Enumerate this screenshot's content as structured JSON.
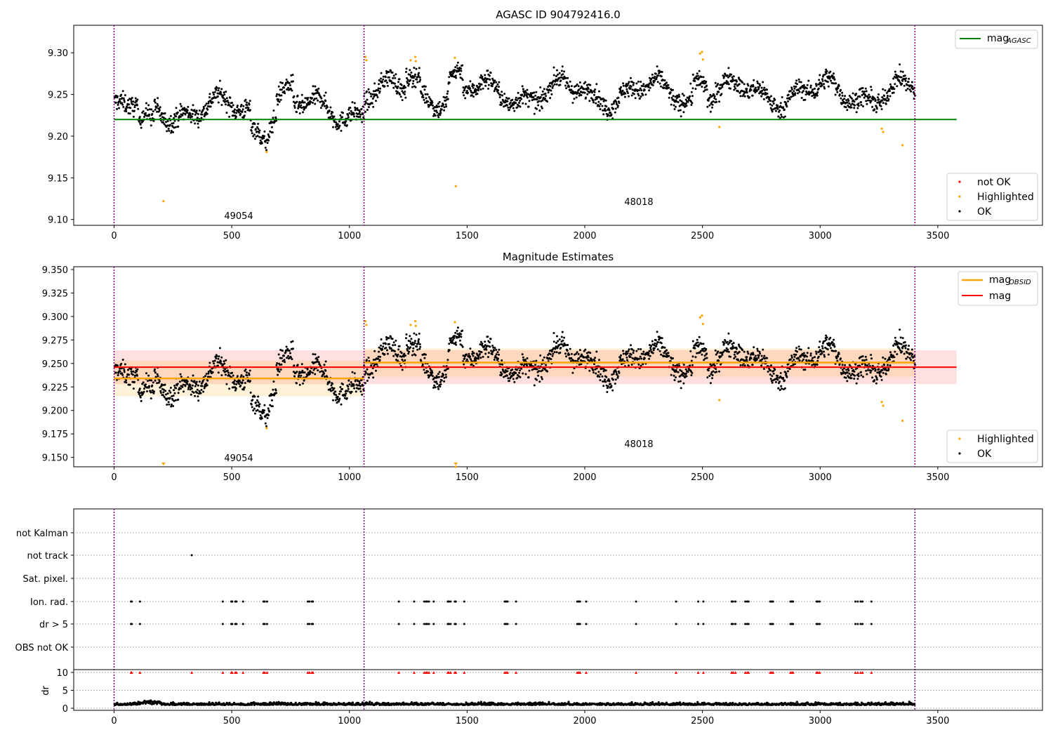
{
  "colors": {
    "ok": "#000000",
    "not_ok": "#ff0000",
    "highlighted": "#ffa500",
    "mag_agasc": "#008000",
    "mag_obsid": "#ffa500",
    "mag": "#ff0000",
    "obsid_boundary": "#800080"
  },
  "chart_data": [
    {
      "id": "top",
      "type": "scatter",
      "title": "AGASC ID 904792416.0",
      "xlim": [
        -170,
        3970
      ],
      "ylim": [
        9.093,
        9.333
      ],
      "xticks": [
        0,
        500,
        1000,
        1500,
        2000,
        2500,
        3000,
        3500
      ],
      "yticks": [
        "9.10",
        "9.15",
        "9.20",
        "9.25",
        "9.30"
      ],
      "obsid_boundaries": [
        0,
        1062,
        3403
      ],
      "obsid_labels": [
        {
          "text": "49054",
          "x": 530,
          "y": 9.104
        },
        {
          "text": "48018",
          "x": 2230,
          "y": 9.121
        }
      ],
      "mag_agasc": {
        "y": 9.22,
        "x": [
          0,
          3580
        ]
      },
      "highlighted_points": [
        {
          "x": 210,
          "y": 9.122
        },
        {
          "x": 648,
          "y": 9.181
        },
        {
          "x": 1068,
          "y": 9.295
        },
        {
          "x": 1072,
          "y": 9.291
        },
        {
          "x": 1260,
          "y": 9.291
        },
        {
          "x": 1280,
          "y": 9.295
        },
        {
          "x": 1282,
          "y": 9.29
        },
        {
          "x": 1448,
          "y": 9.294
        },
        {
          "x": 1452,
          "y": 9.14
        },
        {
          "x": 2490,
          "y": 9.299
        },
        {
          "x": 2498,
          "y": 9.301
        },
        {
          "x": 2502,
          "y": 9.292
        },
        {
          "x": 2572,
          "y": 9.211
        },
        {
          "x": 3262,
          "y": 9.209
        },
        {
          "x": 3268,
          "y": 9.205
        },
        {
          "x": 3350,
          "y": 9.189
        }
      ],
      "ok_points": "dense black scatter of ~2000 estimates between 9.18 and 9.29",
      "legend": {
        "upper": [
          {
            "label": "mag",
            "sub": "AGASC"
          }
        ],
        "lower": [
          "not OK",
          "Highlighted",
          "OK"
        ]
      }
    },
    {
      "id": "mid",
      "type": "scatter",
      "title": "Magnitude Estimates",
      "xlim": [
        -170,
        3970
      ],
      "ylim": [
        9.14,
        9.353
      ],
      "xticks": [
        0,
        500,
        1000,
        1500,
        2000,
        2500,
        3000,
        3500
      ],
      "yticks": [
        "9.150",
        "9.175",
        "9.200",
        "9.225",
        "9.250",
        "9.275",
        "9.300",
        "9.325",
        "9.350"
      ],
      "obsid_boundaries": [
        0,
        1062,
        3403
      ],
      "obsid_labels": [
        {
          "text": "49054",
          "x": 530,
          "y": 9.149
        },
        {
          "text": "48018",
          "x": 2230,
          "y": 9.165
        }
      ],
      "mag": {
        "y": 9.246,
        "band": [
          9.228,
          9.264
        ],
        "x": [
          0,
          3580
        ]
      },
      "mag_obsid": [
        {
          "x": [
            0,
            1062
          ],
          "y": 9.234,
          "band": [
            9.215,
            9.253
          ]
        },
        {
          "x": [
            1062,
            3403
          ],
          "y": 9.251,
          "band": [
            9.236,
            9.266
          ]
        }
      ],
      "clipped_markers": [
        {
          "x": 210
        },
        {
          "x": 1452
        }
      ],
      "legend": {
        "upper": [
          {
            "label": "mag",
            "sub": "OBSID"
          },
          {
            "label": "mag",
            "sub": ""
          }
        ],
        "lower": [
          "Highlighted",
          "OK"
        ]
      }
    },
    {
      "id": "flags",
      "type": "scatter",
      "categories": [
        "not Kalman",
        "not track",
        "Sat. pixel.",
        "Ion. rad.",
        "dr > 5",
        "OBS not OK"
      ],
      "not_track_points": [
        330
      ],
      "ion_rad_points": [
        72,
        75,
        110,
        462,
        498,
        502,
        515,
        520,
        548,
        635,
        640,
        650,
        823,
        830,
        840,
        845,
        1210,
        1275,
        1318,
        1326,
        1330,
        1338,
        1358,
        1418,
        1422,
        1430,
        1448,
        1452,
        1488,
        1660,
        1666,
        1672,
        1708,
        1968,
        1974,
        1980,
        2006,
        2218,
        2388,
        2482,
        2504,
        2624,
        2630,
        2640,
        2682,
        2690,
        2696,
        2788,
        2794,
        2800,
        2874,
        2880,
        2885,
        2985,
        2990,
        2998,
        3150,
        3160,
        3172,
        3180,
        3218
      ],
      "dr_gt_5_same_as_ion_rad": true
    },
    {
      "id": "dr",
      "type": "scatter",
      "ylabel": "dr",
      "yticks": [
        "0",
        "5",
        "10"
      ],
      "xticks": [
        0,
        500,
        1000,
        1500,
        2000,
        2500,
        3000,
        3500
      ],
      "ylim": [
        -0.8,
        11
      ]
    }
  ],
  "text": {
    "top_title": "AGASC ID 904792416.0",
    "mid_title": "Magnitude Estimates",
    "legend_mag": "mag",
    "legend_sub_agasc": "AGASC",
    "legend_sub_obsid": "OBSID",
    "legend_not_ok": "not OK",
    "legend_highlighted": "Highlighted",
    "legend_ok": "OK",
    "label_49054": "49054",
    "label_48018": "48018",
    "dr_label": "dr"
  }
}
